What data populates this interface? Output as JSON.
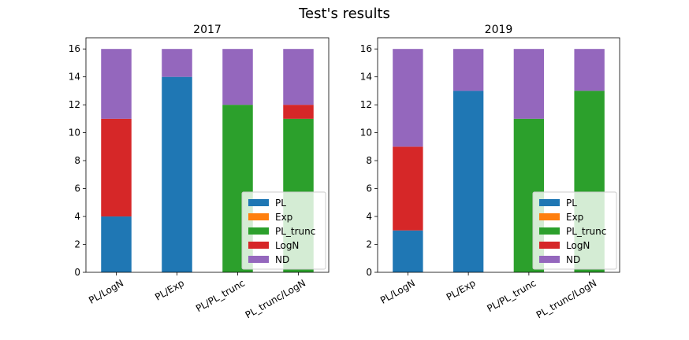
{
  "figure": {
    "title": "Test's results"
  },
  "chart_data": [
    {
      "type": "bar",
      "stacked": true,
      "title": "2017",
      "categories": [
        "PL/LogN",
        "PL/Exp",
        "PL/PL_trunc",
        "PL_trunc/LogN"
      ],
      "series": [
        {
          "name": "PL",
          "color": "#1f77b4",
          "values": [
            4,
            14,
            0,
            0
          ]
        },
        {
          "name": "Exp",
          "color": "#ff7f0e",
          "values": [
            0,
            0,
            0,
            0
          ]
        },
        {
          "name": "PL_trunc",
          "color": "#2ca02c",
          "values": [
            0,
            0,
            12,
            11
          ]
        },
        {
          "name": "LogN",
          "color": "#d62728",
          "values": [
            7,
            0,
            0,
            1
          ]
        },
        {
          "name": "ND",
          "color": "#9467bd",
          "values": [
            5,
            2,
            4,
            4
          ]
        }
      ],
      "ylim": [
        0,
        16.8
      ],
      "yticks": [
        0,
        2,
        4,
        6,
        8,
        10,
        12,
        14,
        16
      ],
      "legend": "lower-right",
      "grid": false
    },
    {
      "type": "bar",
      "stacked": true,
      "title": "2019",
      "categories": [
        "PL/LogN",
        "PL/Exp",
        "PL/PL_trunc",
        "PL_trunc/LogN"
      ],
      "series": [
        {
          "name": "PL",
          "color": "#1f77b4",
          "values": [
            3,
            13,
            0,
            0
          ]
        },
        {
          "name": "Exp",
          "color": "#ff7f0e",
          "values": [
            0,
            0,
            0,
            0
          ]
        },
        {
          "name": "PL_trunc",
          "color": "#2ca02c",
          "values": [
            0,
            0,
            11,
            13
          ]
        },
        {
          "name": "LogN",
          "color": "#d62728",
          "values": [
            6,
            0,
            0,
            0
          ]
        },
        {
          "name": "ND",
          "color": "#9467bd",
          "values": [
            7,
            3,
            5,
            3
          ]
        }
      ],
      "ylim": [
        0,
        16.8
      ],
      "yticks": [
        0,
        2,
        4,
        6,
        8,
        10,
        12,
        14,
        16
      ],
      "legend": "lower-right",
      "grid": false
    }
  ]
}
